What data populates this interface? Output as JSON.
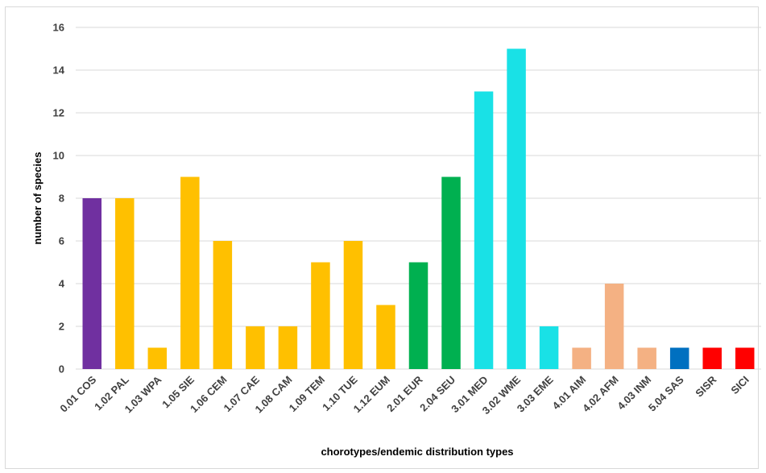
{
  "chart_data": {
    "type": "bar",
    "title": "",
    "xlabel": "chorotypes/endemic distribution types",
    "ylabel": "number of species",
    "ylim": [
      0,
      16
    ],
    "y_ticks": [
      0,
      2,
      4,
      6,
      8,
      10,
      12,
      14,
      16
    ],
    "grid": "horizontal",
    "legend": "none",
    "categories": [
      "0.01 COS",
      "1.02 PAL",
      "1.03 WPA",
      "1.05 SIE",
      "1.06 CEM",
      "1.07 CAE",
      "1.08 CAM",
      "1.09 TEM",
      "1.10 TUE",
      "1.12 EUM",
      "2.01 EUR",
      "2.04 SEU",
      "3.01 MED",
      "3.02 WME",
      "3.03 EME",
      "4.01 AIM",
      "4.02 AFM",
      "4.03 INM",
      "5.04 SAS",
      "SISR",
      "SICI"
    ],
    "values": [
      8,
      8,
      1,
      9,
      6,
      2,
      2,
      5,
      6,
      3,
      5,
      9,
      13,
      15,
      2,
      1,
      4,
      1,
      1,
      1,
      1
    ],
    "bar_colors": [
      "#7030a0",
      "#ffc000",
      "#ffc000",
      "#ffc000",
      "#ffc000",
      "#ffc000",
      "#ffc000",
      "#ffc000",
      "#ffc000",
      "#ffc000",
      "#00b050",
      "#00b050",
      "#19e1e6",
      "#19e1e6",
      "#19e1e6",
      "#f4b183",
      "#f4b183",
      "#f4b183",
      "#0070c0",
      "#ff0000",
      "#ff0000"
    ],
    "gridline_color": "#d9d9d9",
    "axis_color": "#d9d9d9"
  }
}
